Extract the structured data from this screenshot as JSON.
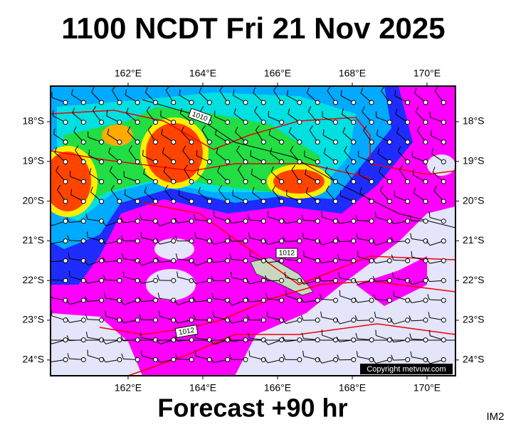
{
  "title": "1100 NCDT Fri 21 Nov 2025",
  "subtitle": "Forecast +90 hr",
  "corner_label": "IM2",
  "map": {
    "longitude_labels": [
      "162°E",
      "164°E",
      "166°E",
      "168°E",
      "170°E"
    ],
    "latitude_labels": [
      "18°S",
      "19°S",
      "20°S",
      "21°S",
      "22°S",
      "23°S",
      "24°S"
    ],
    "contour_labels": [
      "1010",
      "1012",
      "1012"
    ],
    "copyright": "Copyright metvuw.com"
  }
}
